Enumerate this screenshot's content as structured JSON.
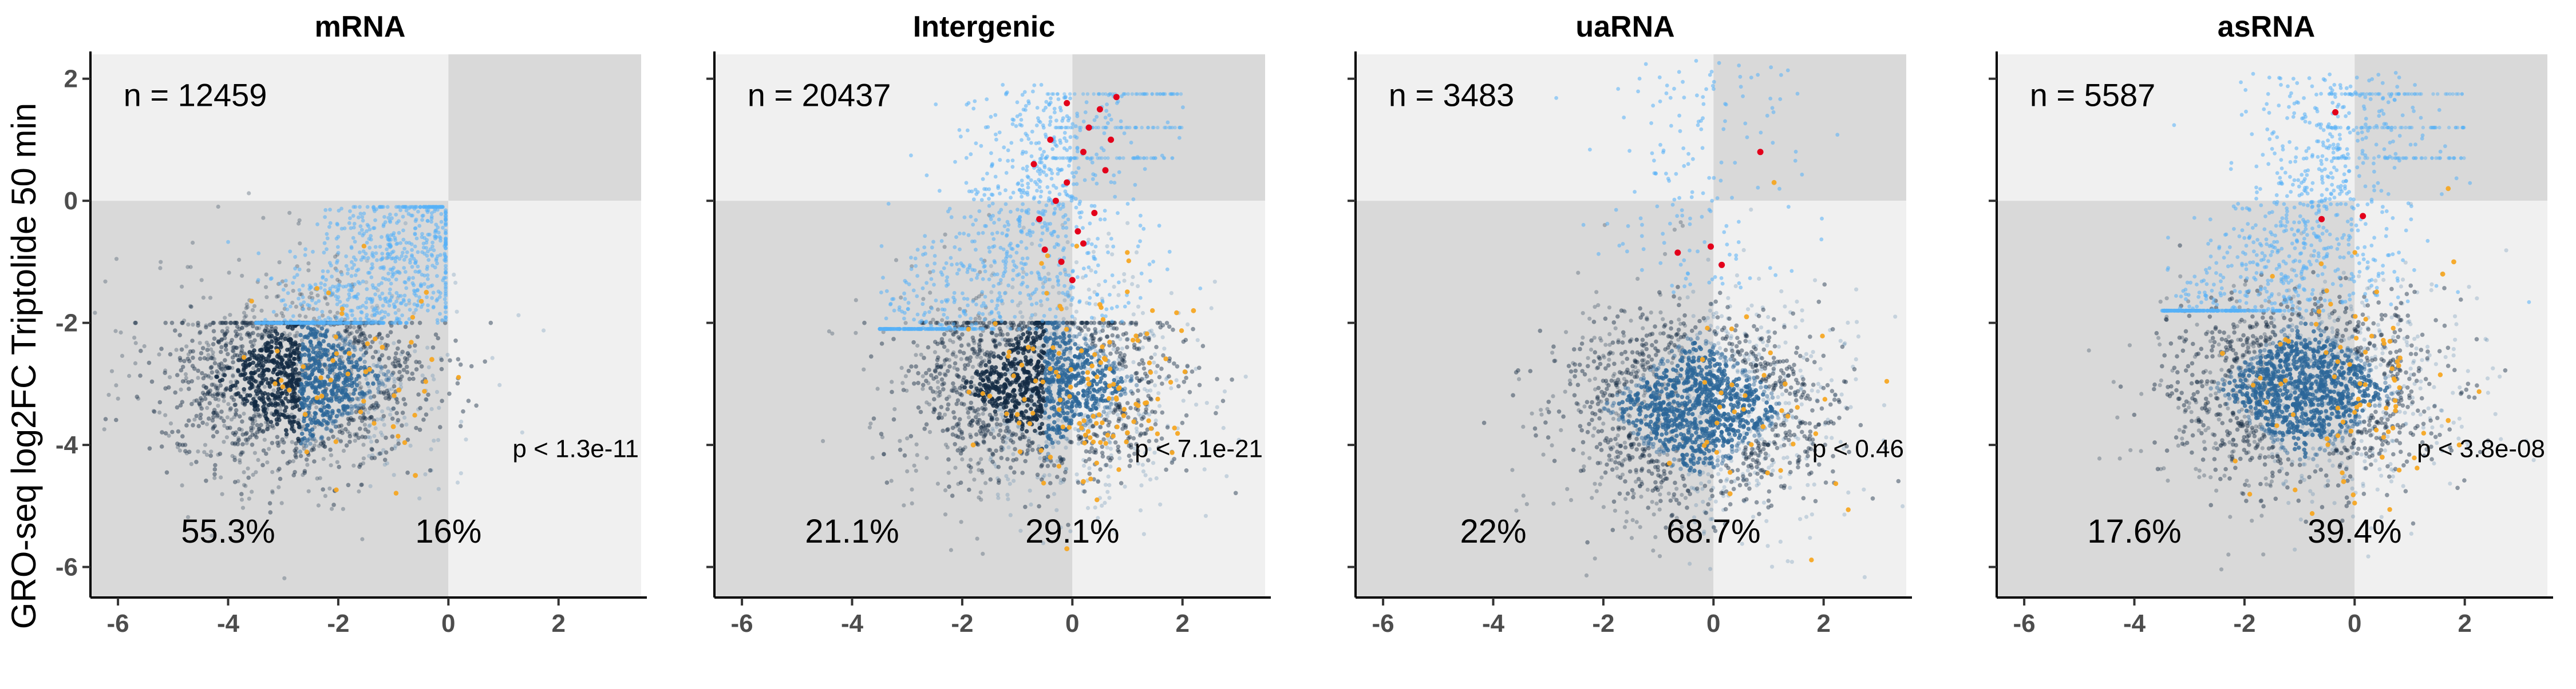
{
  "chart_data": {
    "type": "scatter",
    "ylabel": "GRO-seq log2FC Triptolide 50 min",
    "xlabel": "",
    "xlim": [
      -6.5,
      3.5
    ],
    "ylim": [
      -6.5,
      2.4
    ],
    "x_ticks": [
      -6,
      -4,
      -2,
      0,
      2
    ],
    "y_ticks": [
      -6,
      -4,
      -2,
      0,
      2
    ],
    "quadrant_split": {
      "x": 0,
      "y": 0
    },
    "grid": false,
    "colors": {
      "background_light": "#f0f0f0",
      "background_dark": "#d9d9d9",
      "points_dark": "#132b43",
      "points_mid": "#2c6799",
      "points_light": "#56b1f7",
      "points_orange": "#f5a623",
      "points_red": "#e3001b"
    },
    "panels": [
      {
        "title": "mRNA",
        "n_label": "n = 12459",
        "pct_left": "55.3%",
        "pct_right": "16%",
        "p_label": "p < 1.3e-11",
        "cluster": {
          "cx": -2.7,
          "cy": -2.9,
          "sx": 1.1,
          "sy": 0.8,
          "top": -2.0
        },
        "diagonal": true,
        "dense_core": true,
        "mid_blob": false,
        "red_points": [],
        "orange_extra": [
          [
            -1.2,
            -2.4
          ],
          [
            -0.9,
            -3.1
          ],
          [
            -1.5,
            -2.8
          ],
          [
            -0.3,
            -2.6
          ],
          [
            -0.6,
            -4.5
          ],
          [
            -2.3,
            -3.2
          ],
          [
            -1.8,
            -2.5
          ],
          [
            -2.6,
            -3.5
          ],
          [
            -0.4,
            -1.5
          ],
          [
            -1.0,
            -3.7
          ]
        ]
      },
      {
        "title": "Intergenic",
        "n_label": "n = 20437",
        "pct_left": "21.1%",
        "pct_right": "29.1%",
        "p_label": "p < 7.1e-21",
        "cluster": {
          "cx": -0.5,
          "cy": -3.0,
          "sx": 1.1,
          "sy": 0.8,
          "top": -2.0
        },
        "diagonal": true,
        "dense_core": true,
        "mid_blob": true,
        "red_points": [
          [
            -0.4,
            1.0
          ],
          [
            0.2,
            0.8
          ],
          [
            -0.1,
            0.3
          ],
          [
            0.5,
            1.5
          ],
          [
            -0.7,
            0.6
          ],
          [
            0.1,
            -0.5
          ],
          [
            -0.2,
            -1.0
          ],
          [
            0.4,
            -0.2
          ],
          [
            -0.5,
            -0.8
          ],
          [
            0.3,
            1.2
          ],
          [
            -0.3,
            0.0
          ],
          [
            0.6,
            0.5
          ],
          [
            0.0,
            -1.3
          ],
          [
            -0.6,
            -0.3
          ],
          [
            0.8,
            1.7
          ],
          [
            0.2,
            -0.7
          ],
          [
            -0.1,
            1.6
          ],
          [
            0.7,
            1.0
          ]
        ],
        "orange_extra": [
          [
            -1.0,
            -3.5
          ],
          [
            0.3,
            -3.0
          ],
          [
            -0.4,
            -4.2
          ],
          [
            0.6,
            -2.6
          ],
          [
            -0.8,
            -2.4
          ],
          [
            1.0,
            -3.8
          ],
          [
            -1.5,
            -3.2
          ],
          [
            0.2,
            -4.6
          ],
          [
            2.2,
            -1.8
          ],
          [
            -0.1,
            -5.7
          ],
          [
            0.5,
            -1.7
          ],
          [
            -1.8,
            -4.0
          ]
        ]
      },
      {
        "title": "uaRNA",
        "n_label": "n = 3483",
        "pct_left": "22%",
        "pct_right": "68.7%",
        "p_label": "p < 0.46",
        "cluster": {
          "cx": -0.3,
          "cy": -3.4,
          "sx": 1.1,
          "sy": 0.8,
          "top": -1.5
        },
        "diagonal": false,
        "dense_core": false,
        "mid_blob": true,
        "red_points": [
          [
            0.85,
            0.8
          ],
          [
            -0.65,
            -0.85
          ],
          [
            -0.05,
            -0.75
          ],
          [
            0.15,
            -1.05
          ]
        ],
        "orange_extra": [
          [
            1.1,
            0.3
          ],
          [
            0.6,
            -1.9
          ],
          [
            -0.2,
            -2.6
          ],
          [
            0.9,
            -3.7
          ],
          [
            -0.8,
            -4.3
          ],
          [
            0.3,
            -4.8
          ],
          [
            1.3,
            -3.0
          ]
        ]
      },
      {
        "title": "asRNA",
        "n_label": "n = 5587",
        "pct_left": "17.6%",
        "pct_right": "39.4%",
        "p_label": "p < 3.8e-08",
        "cluster": {
          "cx": -0.9,
          "cy": -3.1,
          "sx": 1.1,
          "sy": 0.8,
          "top": -1.7
        },
        "diagonal": true,
        "dense_core": false,
        "mid_blob": true,
        "red_points": [
          [
            -0.35,
            1.45
          ],
          [
            -0.6,
            -0.3
          ],
          [
            0.15,
            -0.25
          ]
        ],
        "orange_extra": [
          [
            1.8,
            -1.0
          ],
          [
            1.6,
            -1.2
          ],
          [
            1.7,
            -3.6
          ],
          [
            0.5,
            -4.2
          ],
          [
            -0.5,
            -3.9
          ],
          [
            -1.2,
            -2.3
          ],
          [
            0.8,
            -2.7
          ],
          [
            -2.4,
            -2.5
          ],
          [
            1.9,
            -4.0
          ],
          [
            -0.2,
            -4.6
          ],
          [
            1.7,
            0.2
          ],
          [
            -1.6,
            -3.3
          ]
        ]
      }
    ]
  }
}
